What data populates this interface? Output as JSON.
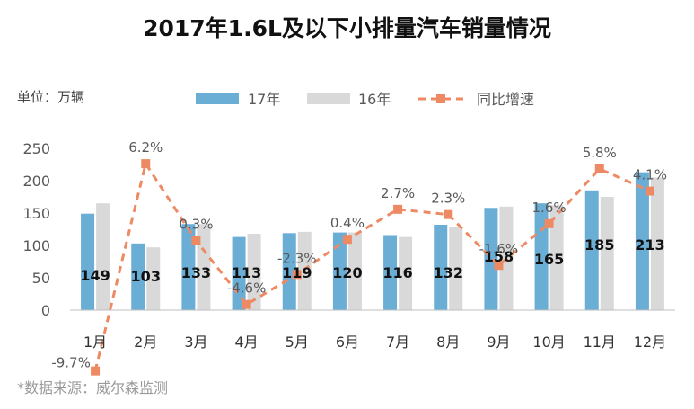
{
  "header": {
    "unit_label": "单位：万辆",
    "source_note": "*数据来源：威尔森监测"
  },
  "colors": {
    "series_2017": "#6aaed6",
    "series_2016": "#d9d9d9",
    "growth_line": "#ee8a63",
    "axis": "#bfbfbf"
  },
  "chart_data": {
    "type": "bar",
    "title": "2017年1.6L及以下小排量汽车销量情况",
    "categories": [
      "1月",
      "2月",
      "3月",
      "4月",
      "5月",
      "6月",
      "7月",
      "8月",
      "9月",
      "10月",
      "11月",
      "12月"
    ],
    "series": [
      {
        "name": "17年",
        "values": [
          149,
          103,
          133,
          113,
          119,
          120,
          116,
          132,
          158,
          165,
          185,
          213
        ]
      },
      {
        "name": "16年",
        "values": [
          165,
          97,
          133,
          118,
          121,
          120,
          113,
          129,
          160,
          162,
          175,
          205
        ]
      },
      {
        "name": "同比增速",
        "type": "line",
        "values": [
          -9.7,
          6.2,
          0.3,
          -4.6,
          -2.3,
          0.4,
          2.7,
          2.3,
          -1.6,
          1.6,
          5.8,
          4.1
        ],
        "labels": [
          "-9.7%",
          "6.2%",
          "0.3%",
          "-4.6%",
          "-2.3%",
          "0.4%",
          "2.7%",
          "2.3%",
          "-1.6%",
          "1.6%",
          "5.8%",
          "4.1%"
        ]
      }
    ],
    "y_ticks": [
      0,
      50,
      100,
      150,
      200,
      250
    ],
    "ylim": [
      0,
      250
    ],
    "legend_position": "top",
    "grid": false
  }
}
